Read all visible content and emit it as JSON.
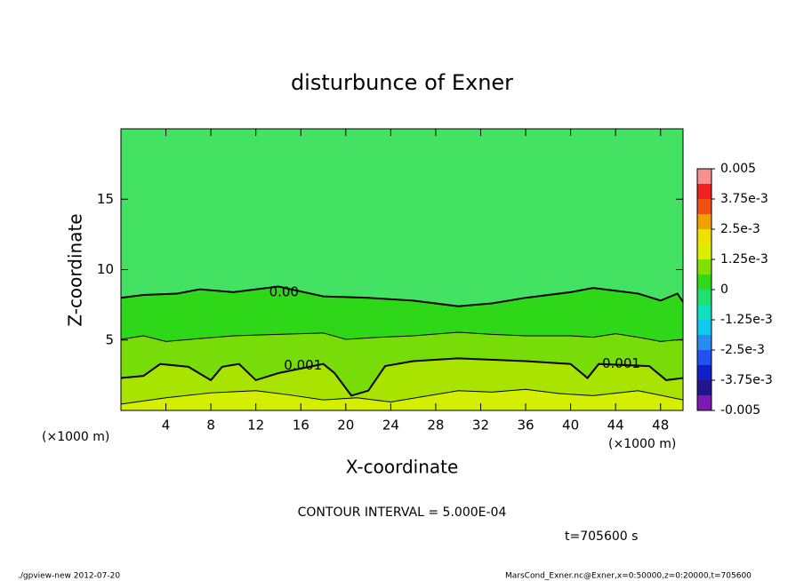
{
  "chart_data": {
    "type": "contour",
    "title": "disturbunce of Exner",
    "xlabel": "X-coordinate",
    "ylabel": "Z-coordinate",
    "x_unit": "(×1000 m)",
    "xlim": [
      0,
      50
    ],
    "xticks": [
      4,
      8,
      12,
      16,
      20,
      24,
      28,
      32,
      36,
      40,
      44,
      48
    ],
    "ylim": [
      0,
      20
    ],
    "yticks": [
      5,
      10,
      15
    ],
    "background": "#44e262",
    "colorbar": {
      "lim": [
        -0.005,
        0.005
      ],
      "ticks": [
        0.005,
        {
          "value": 0.00375,
          "label": "3.75e-3"
        },
        {
          "value": 0.0025,
          "label": "2.5e-3"
        },
        {
          "value": 0.00125,
          "label": "1.25e-3"
        },
        0,
        {
          "value": -0.00125,
          "label": "-1.25e-3"
        },
        {
          "value": -0.0025,
          "label": "-2.5e-3"
        },
        {
          "value": -0.00375,
          "label": "-3.75e-3"
        },
        -0.005
      ],
      "colors": [
        "#7a1ab0",
        "#22148c",
        "#1020c8",
        "#2050f0",
        "#2a8cf0",
        "#10c8f0",
        "#10e0c0",
        "#20e070",
        "#30d818",
        "#80e000",
        "#d8f000",
        "#f0e000",
        "#f0a000",
        "#f05010",
        "#f02020",
        "#f89090"
      ]
    },
    "contours": [
      {
        "level": 0,
        "label": "0.00",
        "width": 2,
        "fill": "#2ed818",
        "x": [
          0,
          2,
          5,
          7,
          10,
          14,
          18,
          22,
          26,
          30,
          33,
          36,
          40,
          42,
          44,
          46,
          48,
          49.5,
          50
        ],
        "z": [
          8.0,
          8.2,
          8.3,
          8.6,
          8.4,
          8.8,
          8.1,
          8.0,
          7.8,
          7.4,
          7.6,
          8.0,
          8.4,
          8.7,
          8.5,
          8.3,
          7.8,
          8.3,
          7.7
        ]
      },
      {
        "level": 0.0005,
        "width": 1,
        "fill": "#78dc08",
        "x": [
          0,
          2,
          4,
          7,
          10,
          14,
          18,
          20,
          23,
          26,
          30,
          33,
          36,
          40,
          42,
          44,
          46,
          48,
          50
        ],
        "z": [
          5.05,
          5.3,
          4.9,
          5.1,
          5.3,
          5.4,
          5.5,
          5.05,
          5.2,
          5.3,
          5.55,
          5.4,
          5.3,
          5.3,
          5.2,
          5.45,
          5.2,
          4.9,
          5.05
        ]
      },
      {
        "level": 0.001,
        "label": "0.001",
        "width": 2,
        "fill": "#a8e400",
        "x": [
          0,
          2,
          3.5,
          6,
          8,
          9,
          10.5,
          12,
          14,
          18,
          19,
          20.5,
          22,
          23.5,
          26,
          30,
          36,
          40,
          41.5,
          42.5,
          47,
          48.5,
          50
        ],
        "z": [
          2.3,
          2.45,
          3.3,
          3.1,
          2.15,
          3.1,
          3.3,
          2.15,
          2.65,
          3.3,
          2.65,
          1.05,
          1.4,
          3.15,
          3.5,
          3.7,
          3.5,
          3.3,
          2.3,
          3.3,
          3.15,
          2.15,
          2.3
        ]
      },
      {
        "level": 0.0015,
        "width": 1,
        "fill": "#d4ee00",
        "x": [
          0,
          4,
          8,
          12,
          15,
          18,
          21,
          24,
          27,
          30,
          33,
          36,
          39,
          42,
          46,
          50
        ],
        "z": [
          0.45,
          0.9,
          1.25,
          1.4,
          1.1,
          0.75,
          0.9,
          0.6,
          1.0,
          1.4,
          1.3,
          1.5,
          1.2,
          1.05,
          1.4,
          0.75
        ]
      }
    ],
    "annotations": [
      "CONTOUR INTERVAL = 5.000E-04",
      "t=705600 s",
      "./gpview-new  2012-07-20",
      "MarsCond_Exner.nc@Exner,x=0:50000,z=0:20000,t=705600"
    ]
  }
}
